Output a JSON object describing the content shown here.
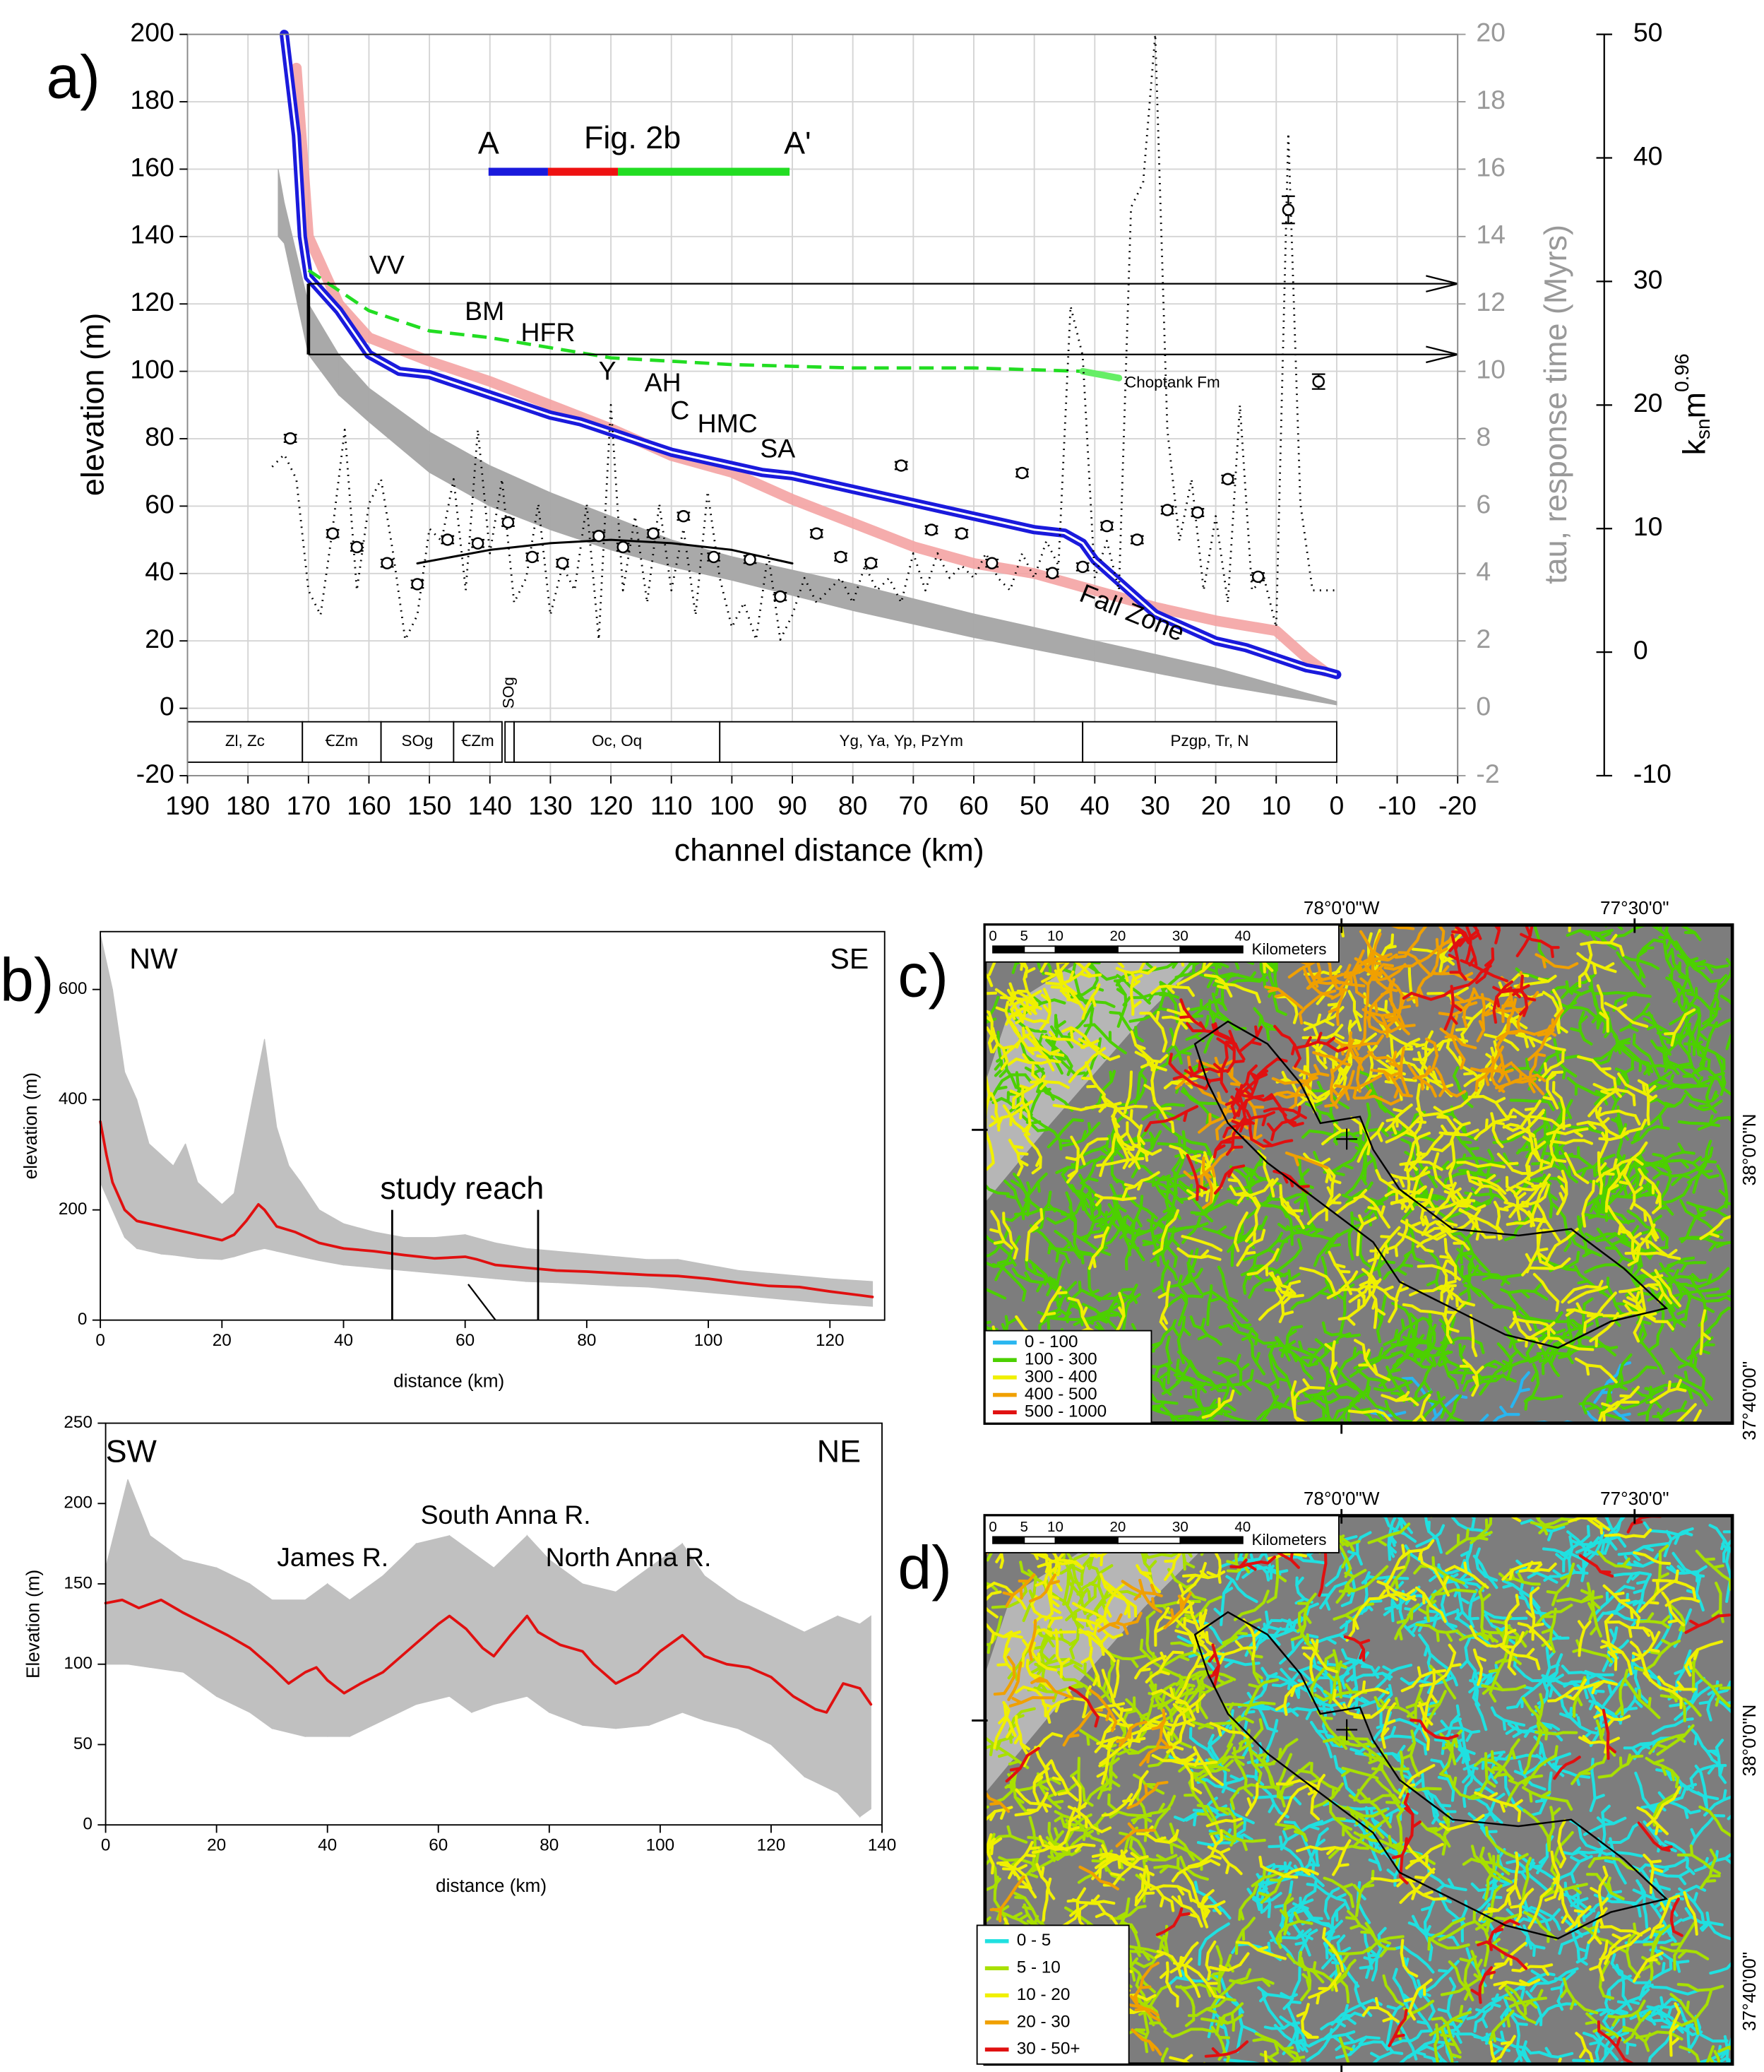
{
  "chart_data": [
    {
      "type": "line",
      "panel_label": "a)",
      "xlabel": "channel distance (km)",
      "ylabel": "elevation (m)",
      "y2label": "tau, response time (Myrs)",
      "y3label": {
        "k": "k",
        "sub": "sn",
        "m": "m",
        "sup": "0.96"
      },
      "xlim": [
        190,
        -20
      ],
      "xticks": [
        190,
        180,
        170,
        160,
        150,
        140,
        130,
        120,
        110,
        100,
        90,
        80,
        70,
        60,
        50,
        40,
        30,
        20,
        10,
        0,
        -10,
        -20
      ],
      "ylim": [
        -20,
        200
      ],
      "yticks": [
        -20,
        0,
        20,
        40,
        60,
        80,
        100,
        120,
        140,
        160,
        180,
        200
      ],
      "y2lim": [
        -2,
        20
      ],
      "y2ticks": [
        -2,
        0,
        2,
        4,
        6,
        8,
        10,
        12,
        14,
        16,
        18,
        20
      ],
      "y3lim": [
        -10,
        50
      ],
      "y3ticks": [
        -10,
        0,
        10,
        20,
        30,
        40,
        50
      ],
      "grid": true,
      "band": {
        "color": "#a9a9a9",
        "x": [
          175,
          174,
          170,
          165,
          160,
          150,
          140,
          130,
          120,
          110,
          100,
          80,
          60,
          40,
          20,
          0
        ],
        "upper": [
          160,
          150,
          120,
          105,
          95,
          82,
          72,
          64,
          57,
          50,
          45,
          37,
          28,
          20,
          12,
          2
        ],
        "lower": [
          140,
          138,
          105,
          93,
          85,
          70,
          60,
          53,
          47,
          42,
          38,
          29,
          21,
          14,
          7,
          1
        ]
      },
      "series": [
        {
          "style": "thick",
          "color": "#f4a3a3",
          "x": [
            172,
            170,
            165,
            160,
            150,
            140,
            130,
            120,
            110,
            100,
            90,
            80,
            70,
            60,
            50,
            40,
            30,
            20,
            10,
            5,
            2
          ],
          "values": [
            190,
            140,
            120,
            110,
            103,
            97,
            90,
            83,
            75,
            70,
            62,
            55,
            48,
            43,
            40,
            35,
            30,
            26,
            23,
            15,
            11
          ]
        },
        {
          "style": "double",
          "color": "#1a1adc",
          "x": [
            174,
            172,
            171,
            170,
            165,
            160,
            155,
            150,
            145,
            140,
            135,
            130,
            125,
            120,
            115,
            110,
            105,
            100,
            95,
            90,
            85,
            80,
            75,
            70,
            65,
            60,
            55,
            50,
            45,
            42,
            40,
            35,
            30,
            25,
            20,
            15,
            10,
            5,
            2,
            0
          ],
          "values": [
            200,
            170,
            140,
            128,
            118,
            105,
            100,
            99,
            96,
            93,
            90,
            87,
            85,
            82,
            79,
            76,
            74,
            72,
            70,
            69,
            67,
            65,
            63,
            61,
            59,
            57,
            55,
            53,
            52,
            49,
            44,
            36,
            28,
            24,
            20,
            18,
            15,
            12,
            11,
            10
          ]
        },
        {
          "style": "dashed",
          "color": "#22dd22",
          "x": [
            170,
            160,
            150,
            140,
            130,
            120,
            100,
            80,
            60,
            42
          ],
          "values": [
            130,
            118,
            112,
            110,
            107,
            104,
            102,
            101,
            101,
            100
          ]
        },
        {
          "style": "solid",
          "color": "#66ee66",
          "x": [
            42,
            36
          ],
          "values": [
            100,
            98
          ]
        },
        {
          "style": "thin",
          "color": "#000000",
          "x": [
            152,
            140,
            130,
            120,
            110,
            100,
            90
          ],
          "values": [
            43,
            47,
            49,
            50,
            49,
            47,
            43
          ]
        },
        {
          "style": "dotted",
          "color": "#000000",
          "axis": "y3",
          "x": [
            176,
            174,
            172,
            170,
            168,
            166,
            164,
            162,
            160,
            158,
            156,
            154,
            152,
            150,
            148,
            146,
            144,
            142,
            140,
            138,
            136,
            134,
            132,
            130,
            128,
            126,
            124,
            122,
            120,
            118,
            116,
            114,
            112,
            110,
            108,
            106,
            104,
            102,
            100,
            98,
            96,
            94,
            92,
            90,
            88,
            86,
            84,
            82,
            80,
            78,
            76,
            74,
            72,
            70,
            68,
            66,
            64,
            62,
            60,
            58,
            56,
            54,
            52,
            50,
            48,
            46,
            44,
            42,
            40,
            38,
            36,
            34,
            32,
            30,
            28,
            26,
            24,
            22,
            20,
            18,
            16,
            14,
            12,
            10,
            8,
            6,
            4,
            0
          ],
          "values": [
            15,
            16,
            14,
            5,
            3,
            10,
            18,
            5,
            12,
            14,
            8,
            1,
            3,
            10,
            9,
            14,
            5,
            18,
            8,
            14,
            4,
            6,
            12,
            3,
            7,
            5,
            12,
            1,
            20,
            5,
            11,
            4,
            12,
            5,
            10,
            3,
            13,
            6,
            2,
            4,
            1,
            8,
            1,
            3,
            6,
            4,
            5,
            6,
            4,
            7,
            5,
            6,
            4,
            8,
            5,
            8,
            6,
            7,
            6,
            8,
            6,
            5,
            8,
            6,
            9,
            7,
            28,
            24,
            6,
            9,
            5,
            36,
            38,
            50,
            18,
            9,
            14,
            5,
            11,
            4,
            20,
            5,
            6,
            2,
            42,
            12,
            5,
            5
          ]
        }
      ],
      "points": {
        "axis": "y3",
        "x": [
          173,
          166,
          162,
          157,
          152,
          147,
          142,
          137,
          133,
          128,
          122,
          118,
          113,
          108,
          103,
          97,
          92,
          86,
          82,
          77,
          72,
          67,
          62,
          57,
          52,
          47,
          42,
          38,
          33,
          28,
          23,
          18,
          13,
          8,
          3
        ],
        "values": [
          17.3,
          9.6,
          8.5,
          7.2,
          5.5,
          9.1,
          8.8,
          10.5,
          7.7,
          7.2,
          9.4,
          8.5,
          9.6,
          11,
          7.7,
          7.5,
          4.5,
          9.6,
          7.7,
          7.2,
          15.1,
          9.9,
          9.6,
          7.2,
          14.5,
          6.4,
          6.9,
          10.2,
          9.1,
          11.5,
          11.3,
          14,
          6.1,
          35.8,
          21.9
        ],
        "errors": [
          0.3,
          0.3,
          0.3,
          0.3,
          0.3,
          0.3,
          0.3,
          0.3,
          0.3,
          0.3,
          0.3,
          0.3,
          0.3,
          0.3,
          0.3,
          0.3,
          0.3,
          0.3,
          0.3,
          0.3,
          0.3,
          0.3,
          0.3,
          0.3,
          0.3,
          0.3,
          0.3,
          0.3,
          0.3,
          0.3,
          0.3,
          0.3,
          0.3,
          1.1,
          0.6
        ]
      },
      "hlines": {
        "values": [
          126,
          105
        ],
        "from": 170
      },
      "units": [
        {
          "label": "Zl, Zc",
          "from": 190,
          "to": 171
        },
        {
          "label": "ꞒZm",
          "from": 171,
          "to": 158
        },
        {
          "label": "SOg",
          "from": 158,
          "to": 146
        },
        {
          "label": "ꞒZm",
          "from": 146,
          "to": 138
        },
        {
          "label": "SOg",
          "from": 137.5,
          "to": 136
        },
        {
          "label": "Oc, Oq",
          "from": 136,
          "to": 102
        },
        {
          "label": "Yg, Ya, Yp, PzYm",
          "from": 102,
          "to": 42
        },
        {
          "label": "Pzgp, Tr, N",
          "from": 42,
          "to": 0
        }
      ],
      "section": {
        "start": "A",
        "title": "Fig. 2b",
        "end": "A'"
      },
      "annotations": [
        "VV",
        "BM",
        "HFR",
        "Y",
        "AH",
        "C",
        "HMC",
        "SA",
        "Fall Zone",
        "Choptank Fm"
      ]
    },
    {
      "type": "line",
      "panel_label": "b)",
      "xlabel": "distance (km)",
      "ylabel": "elevation (m)",
      "xlim": [
        0,
        129
      ],
      "xticks": [
        0,
        20,
        40,
        60,
        80,
        100,
        120
      ],
      "ylim": [
        0,
        705
      ],
      "yticks": [
        0,
        200,
        400,
        600
      ],
      "band": {
        "color": "#c0c0c0",
        "x": [
          0,
          2,
          4,
          6,
          8,
          10,
          12,
          14,
          16,
          20,
          22,
          25,
          27,
          29,
          31,
          33,
          36,
          40,
          45,
          50,
          55,
          60,
          65,
          70,
          75,
          80,
          85,
          90,
          95,
          100,
          105,
          110,
          115,
          120,
          127
        ],
        "upper": [
          700,
          600,
          450,
          400,
          320,
          300,
          280,
          320,
          250,
          210,
          230,
          400,
          510,
          350,
          280,
          250,
          200,
          175,
          160,
          150,
          150,
          155,
          140,
          130,
          125,
          120,
          115,
          110,
          110,
          100,
          90,
          85,
          80,
          75,
          70
        ],
        "lower": [
          250,
          200,
          150,
          130,
          125,
          120,
          118,
          115,
          112,
          110,
          115,
          125,
          130,
          125,
          120,
          115,
          108,
          100,
          95,
          90,
          85,
          80,
          75,
          70,
          68,
          65,
          62,
          60,
          55,
          50,
          45,
          40,
          35,
          30,
          25
        ]
      },
      "series": [
        {
          "style": "red",
          "color": "#e01010",
          "x": [
            0,
            1,
            2,
            4,
            6,
            10,
            14,
            18,
            20,
            22,
            24,
            26,
            27,
            29,
            32,
            36,
            40,
            45,
            50,
            55,
            60,
            62,
            65,
            70,
            75,
            80,
            85,
            90,
            95,
            100,
            105,
            110,
            115,
            120,
            125,
            127
          ],
          "values": [
            360,
            300,
            250,
            200,
            180,
            170,
            160,
            150,
            145,
            155,
            180,
            210,
            200,
            170,
            160,
            140,
            130,
            125,
            118,
            112,
            115,
            110,
            100,
            95,
            90,
            88,
            85,
            82,
            80,
            75,
            68,
            62,
            60,
            52,
            45,
            42
          ]
        }
      ],
      "reach": [
        48,
        72
      ],
      "annotations": [
        "NW",
        "SE",
        "study reach"
      ]
    },
    {
      "type": "line",
      "xlabel": "distance (km)",
      "ylabel": "Elevation (m)",
      "xlim": [
        0,
        140
      ],
      "xticks": [
        0,
        20,
        40,
        60,
        80,
        100,
        120,
        140
      ],
      "ylim": [
        0,
        250
      ],
      "yticks": [
        0,
        50,
        100,
        150,
        200,
        250
      ],
      "band": {
        "color": "#c0c0c0",
        "x": [
          0,
          4,
          8,
          14,
          20,
          26,
          30,
          36,
          40,
          44,
          50,
          56,
          62,
          66,
          70,
          76,
          80,
          86,
          92,
          98,
          104,
          108,
          114,
          120,
          126,
          132,
          136,
          138
        ],
        "upper": [
          160,
          215,
          180,
          165,
          160,
          150,
          140,
          140,
          150,
          140,
          155,
          175,
          180,
          170,
          160,
          180,
          165,
          150,
          145,
          160,
          175,
          155,
          140,
          130,
          120,
          130,
          125,
          130
        ],
        "lower": [
          100,
          100,
          98,
          95,
          80,
          70,
          60,
          55,
          55,
          55,
          65,
          75,
          80,
          70,
          75,
          80,
          70,
          62,
          60,
          62,
          70,
          65,
          60,
          50,
          30,
          20,
          5,
          10
        ]
      },
      "series": [
        {
          "style": "red",
          "color": "#e01010",
          "x": [
            0,
            3,
            6,
            10,
            14,
            18,
            22,
            26,
            30,
            33,
            36,
            38,
            40,
            43,
            46,
            50,
            55,
            60,
            62,
            65,
            68,
            70,
            73,
            76,
            78,
            82,
            86,
            88,
            92,
            96,
            100,
            104,
            108,
            112,
            116,
            120,
            124,
            128,
            130,
            133,
            136,
            138
          ],
          "values": [
            138,
            140,
            135,
            140,
            132,
            125,
            118,
            110,
            98,
            88,
            95,
            98,
            90,
            82,
            88,
            95,
            110,
            125,
            130,
            122,
            110,
            105,
            118,
            130,
            120,
            112,
            108,
            100,
            88,
            95,
            108,
            118,
            105,
            100,
            98,
            92,
            80,
            72,
            70,
            88,
            85,
            75
          ]
        }
      ],
      "annotations": [
        "SW",
        "NE",
        "James R.",
        "South Anna R.",
        "North Anna R."
      ]
    }
  ],
  "maps": [
    {
      "label": "c)",
      "lon_labels": [
        "78°0'0\"W",
        "77°30'0\""
      ],
      "lat_labels": [
        "38°0'0\"N",
        "37°40'00\""
      ],
      "scale_ticks": [
        0,
        5,
        10,
        20,
        30,
        40
      ],
      "scale_unit": "Kilometers",
      "legend": [
        {
          "label": "0 - 100",
          "color": "#29b6f0"
        },
        {
          "label": "100 - 300",
          "color": "#4cd000"
        },
        {
          "label": "300 - 400",
          "color": "#f0f000"
        },
        {
          "label": "400 - 500",
          "color": "#f0a000"
        },
        {
          "label": "500 - 1000",
          "color": "#e01010"
        }
      ]
    },
    {
      "label": "d)",
      "lon_labels": [
        "78°0'0\"W",
        "77°30'0\""
      ],
      "lat_labels": [
        "38°0'0\"N",
        "37°40'00\""
      ],
      "scale_ticks": [
        0,
        5,
        10,
        20,
        30,
        40
      ],
      "scale_unit": "Kilometers",
      "legend": [
        {
          "label": "0 - 5",
          "color": "#20e0e0"
        },
        {
          "label": "5 - 10",
          "color": "#a8e000"
        },
        {
          "label": "10 - 20",
          "color": "#f0f000"
        },
        {
          "label": "20 - 30",
          "color": "#f0a000"
        },
        {
          "label": "30 - 50+",
          "color": "#e01010"
        }
      ]
    }
  ]
}
